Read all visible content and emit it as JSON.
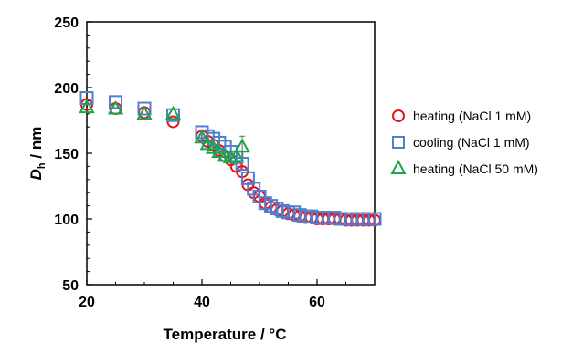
{
  "chart_data": {
    "type": "scatter",
    "xlabel": "Temperature / °C",
    "ylabel": {
      "main": "D",
      "sub": "h",
      "unit": " / nm"
    },
    "xlim": [
      20,
      70
    ],
    "ylim": [
      50,
      250
    ],
    "xticks": [
      20,
      40,
      60
    ],
    "yticks": [
      50,
      100,
      150,
      200,
      250
    ],
    "legend_position": "right",
    "series": [
      {
        "name": "heating (NaCl 1 mM)",
        "marker": "circle",
        "color": "#e8141c",
        "x": [
          20,
          25,
          30,
          35,
          40,
          41,
          42,
          43,
          44,
          45,
          46,
          47,
          48,
          49,
          50,
          51,
          52,
          53,
          54,
          55,
          56,
          57,
          58,
          59,
          60,
          61,
          62,
          63,
          64,
          65,
          66,
          67,
          68,
          69,
          70
        ],
        "y": [
          187,
          184,
          181,
          174,
          163,
          159,
          156,
          152,
          148,
          145,
          140,
          136,
          126,
          120,
          117,
          112,
          109,
          107,
          106,
          104,
          103,
          102,
          101,
          101,
          100,
          100,
          100,
          100,
          100,
          99,
          99,
          99,
          99,
          99,
          99
        ]
      },
      {
        "name": "cooling (NaCl 1 mM)",
        "marker": "square",
        "color": "#4f7fd0",
        "x": [
          20,
          25,
          30,
          35,
          40,
          41,
          42,
          43,
          44,
          45,
          46,
          47,
          48,
          49,
          50,
          51,
          52,
          53,
          54,
          55,
          56,
          57,
          58,
          59,
          60,
          61,
          62,
          63,
          64,
          65,
          66,
          67,
          68,
          69,
          70
        ],
        "y": [
          192,
          189,
          184,
          179,
          166,
          163,
          161,
          158,
          155,
          151,
          147,
          142,
          131,
          123,
          117,
          112,
          110,
          108,
          106,
          105,
          105,
          103,
          102,
          102,
          101,
          101,
          101,
          101,
          100,
          100,
          100,
          100,
          100,
          100,
          100
        ]
      },
      {
        "name": "heating (NaCl 50 mM)",
        "marker": "triangle",
        "color": "#1aa64a",
        "x": [
          20,
          25,
          30,
          35,
          40,
          41,
          42,
          43,
          44,
          45,
          46,
          47
        ],
        "y": [
          185,
          184,
          180,
          180,
          162,
          157,
          154,
          151,
          148,
          147,
          148,
          155
        ],
        "error": [
          0,
          0,
          0,
          0,
          0,
          0,
          0,
          0,
          0,
          0,
          0,
          8
        ]
      }
    ]
  }
}
